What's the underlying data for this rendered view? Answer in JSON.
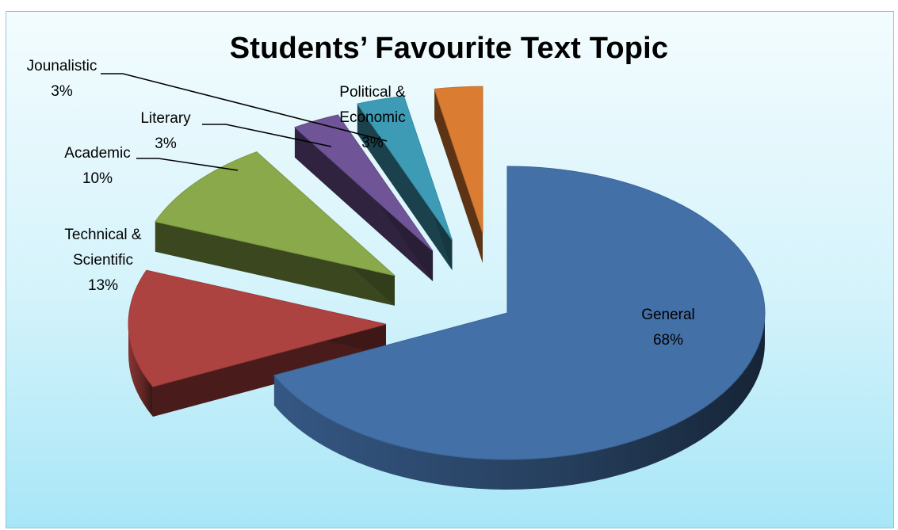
{
  "chart_data": {
    "type": "pie",
    "title": "Students’ Favourite Text Topic",
    "style": "3d-exploded",
    "slices": [
      {
        "label_lines": [
          "General"
        ],
        "pct_label": "68%",
        "value": 68,
        "color": "#4470a8"
      },
      {
        "label_lines": [
          "Technical &",
          "Scientific"
        ],
        "pct_label": "13%",
        "value": 13,
        "color": "#ad4340"
      },
      {
        "label_lines": [
          "Academic"
        ],
        "pct_label": "10%",
        "value": 10,
        "color": "#8aa94a"
      },
      {
        "label_lines": [
          "Literary"
        ],
        "pct_label": "3%",
        "value": 3,
        "color": "#6f5497"
      },
      {
        "label_lines": [
          "Jounalistic"
        ],
        "pct_label": "3%",
        "value": 3,
        "color": "#3d9bb5"
      },
      {
        "label_lines": [
          "Political &",
          "Economic"
        ],
        "pct_label": "3%",
        "value": 3,
        "color": "#db7c33"
      }
    ]
  }
}
